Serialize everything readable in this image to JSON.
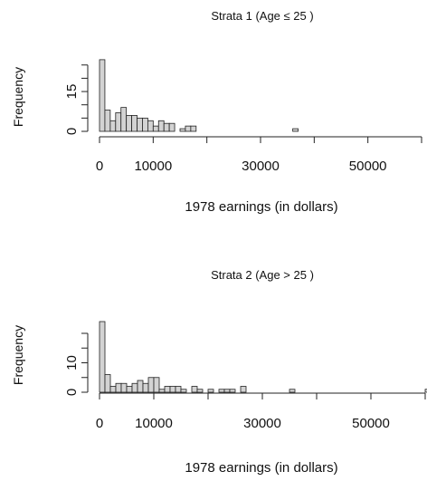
{
  "chart_data": [
    {
      "type": "bar",
      "title": "Strata 1 (Age  ≤ 25 )",
      "xlabel": "1978 earnings (in dollars)",
      "ylabel": "Frequency",
      "bin_width": 1000,
      "xlim": [
        0,
        60000
      ],
      "ylim": [
        0,
        27
      ],
      "x_ticks": [
        0,
        10000,
        20000,
        30000,
        40000,
        50000,
        60000
      ],
      "x_tick_labels": [
        "0",
        "10000",
        "30000",
        "50000"
      ],
      "x_tick_label_values": [
        0,
        10000,
        30000,
        50000
      ],
      "y_ticks": [
        0,
        5,
        10,
        15,
        20,
        25
      ],
      "y_tick_labels": [
        "0",
        "15"
      ],
      "y_tick_label_values": [
        0,
        15
      ],
      "grid": false,
      "bins_start": [
        0,
        1000,
        2000,
        3000,
        4000,
        5000,
        6000,
        7000,
        8000,
        9000,
        10000,
        11000,
        12000,
        13000,
        14000,
        15000,
        16000,
        17000,
        18000,
        19000,
        20000,
        21000,
        22000,
        23000,
        24000,
        25000,
        26000,
        27000,
        28000,
        29000,
        30000,
        31000,
        32000,
        33000,
        34000,
        35000,
        36000
      ],
      "values": [
        27,
        8,
        4,
        7,
        9,
        6,
        6,
        5,
        5,
        4,
        2,
        4,
        3,
        3,
        0,
        1,
        2,
        2,
        0,
        0,
        0,
        0,
        0,
        0,
        0,
        0,
        0,
        0,
        0,
        0,
        0,
        0,
        0,
        0,
        0,
        0,
        1
      ]
    },
    {
      "type": "bar",
      "title": "Strata 2 (Age  > 25 )",
      "xlabel": "1978 earnings (in dollars)",
      "ylabel": "Frequency",
      "bin_width": 1000,
      "xlim": [
        0,
        60000
      ],
      "ylim": [
        0,
        24
      ],
      "x_ticks": [
        0,
        10000,
        20000,
        30000,
        40000,
        50000,
        60000
      ],
      "x_tick_labels": [
        "0",
        "10000",
        "30000",
        "50000"
      ],
      "x_tick_label_values": [
        0,
        10000,
        30000,
        50000
      ],
      "y_ticks": [
        0,
        5,
        10,
        15,
        20
      ],
      "y_tick_labels": [
        "0",
        "10"
      ],
      "y_tick_label_values": [
        0,
        10
      ],
      "grid": false,
      "bins_start": [
        0,
        1000,
        2000,
        3000,
        4000,
        5000,
        6000,
        7000,
        8000,
        9000,
        10000,
        11000,
        12000,
        13000,
        14000,
        15000,
        16000,
        17000,
        18000,
        19000,
        20000,
        21000,
        22000,
        23000,
        24000,
        25000,
        26000,
        27000,
        28000,
        29000,
        30000,
        31000,
        32000,
        33000,
        34000,
        35000,
        36000,
        37000,
        38000,
        39000,
        40000,
        41000,
        42000,
        43000,
        44000,
        45000,
        46000,
        47000,
        48000,
        49000,
        50000,
        51000,
        52000,
        53000,
        54000,
        55000,
        56000,
        57000,
        58000,
        59000,
        60000
      ],
      "values": [
        24,
        6,
        2,
        3,
        3,
        2,
        3,
        4,
        3,
        5,
        5,
        1,
        2,
        2,
        2,
        1,
        0,
        2,
        1,
        0,
        1,
        0,
        1,
        1,
        1,
        0,
        2,
        0,
        0,
        0,
        0,
        0,
        0,
        0,
        0,
        1,
        0,
        0,
        0,
        0,
        0,
        0,
        0,
        0,
        0,
        0,
        0,
        0,
        0,
        0,
        0,
        0,
        0,
        0,
        0,
        0,
        0,
        0,
        0,
        0,
        1
      ]
    }
  ]
}
